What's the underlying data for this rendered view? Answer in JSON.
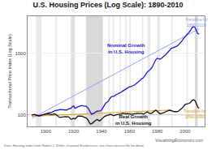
{
  "chart_data": {
    "type": "line",
    "title": "U.S. Housing Prices (Log Scale): 1890-2010",
    "ylabel": "Transactional Price Index (Log Scale)",
    "log": "y",
    "grid": true,
    "x": [
      1890,
      1891,
      1892,
      1893,
      1894,
      1895,
      1896,
      1897,
      1898,
      1899,
      1900,
      1901,
      1902,
      1903,
      1904,
      1905,
      1906,
      1907,
      1908,
      1909,
      1910,
      1911,
      1912,
      1913,
      1914,
      1915,
      1916,
      1917,
      1918,
      1919,
      1920,
      1921,
      1922,
      1923,
      1924,
      1925,
      1926,
      1927,
      1928,
      1929,
      1930,
      1931,
      1932,
      1933,
      1934,
      1935,
      1936,
      1937,
      1938,
      1939,
      1940,
      1941,
      1942,
      1943,
      1944,
      1945,
      1946,
      1947,
      1948,
      1949,
      1950,
      1951,
      1952,
      1953,
      1954,
      1955,
      1956,
      1957,
      1958,
      1959,
      1960,
      1961,
      1962,
      1963,
      1964,
      1965,
      1966,
      1967,
      1968,
      1969,
      1970,
      1971,
      1972,
      1973,
      1974,
      1975,
      1976,
      1977,
      1978,
      1979,
      1980,
      1981,
      1982,
      1983,
      1984,
      1985,
      1986,
      1987,
      1988,
      1989,
      1990,
      1991,
      1992,
      1993,
      1994,
      1995,
      1996,
      1997,
      1998,
      1999,
      2000,
      2001,
      2002,
      2003,
      2004,
      2005,
      2006,
      2007,
      2008,
      2009,
      2010
    ],
    "series": [
      {
        "x": [
          1890,
          2010
        ],
        "values": [
          88,
          2500
        ],
        "color": "#8899ee"
      },
      {
        "x": [
          1890,
          1990
        ],
        "values": [
          95,
          120
        ],
        "color": "#dd9900"
      },
      {
        "color": "#1a1acc",
        "values": [
          100,
          101,
          102,
          100,
          97,
          96,
          97,
          99,
          101,
          103,
          105,
          107,
          109,
          110,
          109,
          111,
          115,
          118,
          118,
          120,
          122,
          122,
          121,
          121,
          121,
          120,
          124,
          126,
          128,
          135,
          140,
          128,
          130,
          135,
          138,
          140,
          142,
          140,
          139,
          138,
          133,
          120,
          108,
          102,
          105,
          108,
          112,
          116,
          115,
          116,
          120,
          130,
          145,
          155,
          160,
          168,
          185,
          196,
          200,
          200,
          210,
          218,
          222,
          228,
          232,
          242,
          250,
          255,
          265,
          278,
          285,
          288,
          292,
          300,
          310,
          322,
          335,
          345,
          368,
          390,
          400,
          430,
          468,
          500,
          520,
          545,
          580,
          640,
          710,
          790,
          830,
          810,
          800,
          830,
          860,
          900,
          950,
          1000,
          1060,
          1120,
          1200,
          1220,
          1240,
          1260,
          1300,
          1350,
          1420,
          1510,
          1620,
          1750,
          1900,
          1980,
          2080,
          2200,
          2380,
          2600,
          2700,
          2650,
          2400,
          2100,
          2050
        ]
      },
      {
        "color": "#111111",
        "values": [
          100,
          101,
          101,
          100,
          98,
          97,
          98,
          100,
          101,
          102,
          103,
          104,
          104,
          103,
          101,
          102,
          104,
          103,
          97,
          94,
          91,
          92,
          92,
          93,
          94,
          93,
          94,
          91,
          85,
          86,
          88,
          86,
          91,
          95,
          96,
          96,
          95,
          93,
          91,
          89,
          85,
          76,
          71,
          72,
          76,
          79,
          82,
          84,
          81,
          81,
          84,
          89,
          94,
          97,
          98,
          100,
          102,
          101,
          99,
          97,
          100,
          102,
          102,
          103,
          103,
          106,
          105,
          103,
          104,
          105,
          103,
          103,
          103,
          104,
          106,
          108,
          107,
          106,
          107,
          106,
          103,
          106,
          111,
          112,
          107,
          105,
          107,
          112,
          117,
          120,
          115,
          108,
          104,
          106,
          107,
          109,
          113,
          116,
          118,
          119,
          118,
          115,
          113,
          112,
          113,
          114,
          118,
          123,
          130,
          138,
          148,
          150,
          151,
          154,
          161,
          172,
          176,
          171,
          154,
          135,
          128
        ]
      }
    ],
    "reference_line": {
      "value": 100,
      "color": "#bbbbbb"
    },
    "shaded_periods": [
      {
        "start": 1893,
        "end": 1897,
        "color": "#cccccc"
      },
      {
        "start": 1907,
        "end": 1908,
        "color": "#cccccc"
      },
      {
        "start": 1918,
        "end": 1921,
        "color": "#bbbbbb"
      },
      {
        "start": 1929,
        "end": 1941,
        "color": "#aaaaaa"
      },
      {
        "start": 1945,
        "end": 1946,
        "color": "#cccccc"
      },
      {
        "start": 1948,
        "end": 1949,
        "color": "#cccccc"
      },
      {
        "start": 1953,
        "end": 1954,
        "color": "#cccccc"
      },
      {
        "start": 1957,
        "end": 1958,
        "color": "#cccccc"
      },
      {
        "start": 1960,
        "end": 1961,
        "color": "#cccccc"
      },
      {
        "start": 1969,
        "end": 1970,
        "color": "#cccccc"
      },
      {
        "start": 1973,
        "end": 1975,
        "color": "#cccccc"
      },
      {
        "start": 1980,
        "end": 1982,
        "color": "#cccccc"
      },
      {
        "start": 1990,
        "end": 1991,
        "color": "#cccccc"
      },
      {
        "start": 2001,
        "end": 2002,
        "color": "#cccccc"
      },
      {
        "start": 2007,
        "end": 2009,
        "color": "#aaaaaa"
      }
    ],
    "ylim": [
      65,
      4000
    ],
    "xlim": [
      1887,
      2014
    ],
    "yticks": [
      100,
      1000
    ],
    "xticks": [
      1900,
      1920,
      1940,
      1960,
      1980,
      2000
    ],
    "annotations": [
      {
        "text": "Nominal Growth\nin U.S. Housing",
        "x": 1958,
        "y": 1200,
        "color": "#1a1acc"
      },
      {
        "text": "Real Growth\nin U.S. Housing",
        "x": 1963,
        "y": 82,
        "color": "#111111"
      }
    ],
    "trend_labels": [
      {
        "text": "Trendline for\n1890-2010",
        "x": 2008,
        "y": 3200,
        "color": "#8899ee"
      },
      {
        "text": "Trendline for\n1890-1990",
        "x": 2007,
        "y": 105,
        "color": "#dd9900"
      }
    ],
    "footer_left": "Data: Housing Index from Robert J. Shiller, Irrational Exuberance: see chart-sources file for detail.",
    "footer_right": "VisualizingEconomics.com"
  }
}
